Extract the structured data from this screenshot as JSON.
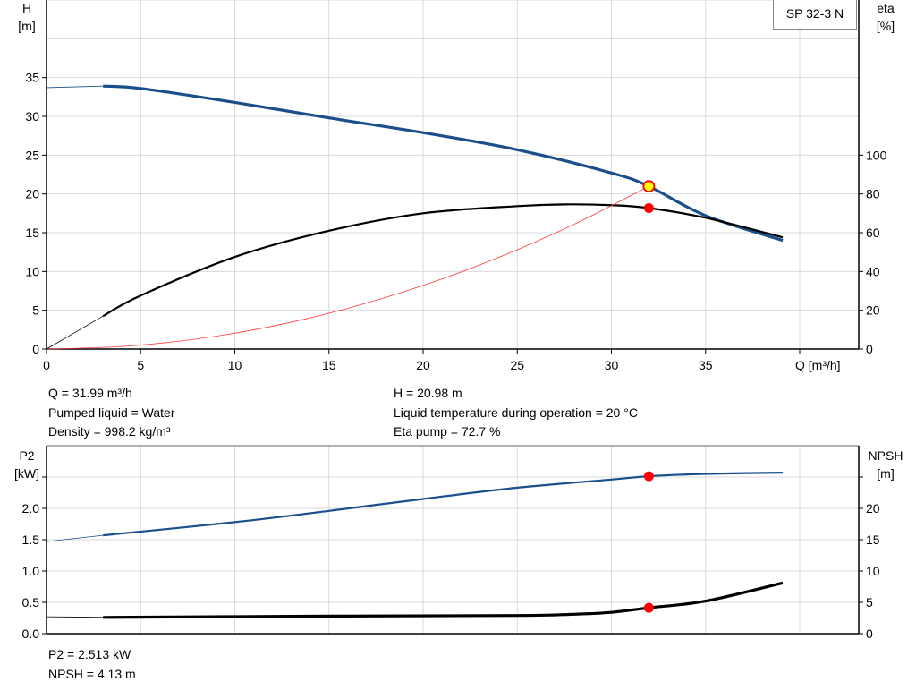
{
  "product_label": "SP 32-3 N",
  "chart_data": [
    {
      "type": "line",
      "x_label": "Q [m³/h]",
      "xlim": [
        0,
        43
      ],
      "x_ticks": [
        "0",
        "5",
        "10",
        "15",
        "20",
        "25",
        "30",
        "35"
      ],
      "y_left": {
        "label": [
          "H",
          "[m]"
        ],
        "range": [
          0,
          45
        ],
        "ticks": [
          "0",
          "5",
          "10",
          "15",
          "20",
          "25",
          "30",
          "35"
        ]
      },
      "y_right": {
        "label": [
          "eta",
          "[%]"
        ],
        "range": [
          0,
          180
        ],
        "ticks": [
          "0",
          "20",
          "40",
          "60",
          "80",
          "100"
        ]
      },
      "grid": true,
      "series": [
        {
          "id": "head",
          "axis": "left",
          "color": "#1a4f8b",
          "x": [
            0,
            3,
            5,
            10,
            15,
            20,
            25,
            30,
            31.99,
            35,
            39.1
          ],
          "y": [
            33.7,
            33.9,
            33.6,
            31.8,
            29.8,
            27.9,
            25.7,
            22.7,
            20.98,
            17.2,
            14.0
          ]
        },
        {
          "id": "eta",
          "axis": "right",
          "color": "#000000",
          "x": [
            0,
            3,
            5,
            10,
            15,
            20,
            25,
            27.5,
            30,
            32,
            35,
            39.1
          ],
          "y": [
            0,
            17,
            27.6,
            47.5,
            61,
            70,
            73.7,
            74.6,
            74.2,
            72.7,
            67.7,
            57.6
          ]
        },
        {
          "id": "system",
          "axis": "left",
          "color": "#ff3b3b",
          "x": [
            0,
            4,
            8,
            12,
            16,
            20,
            24,
            28,
            31.99
          ],
          "y": [
            0,
            0.33,
            1.31,
            2.95,
            5.25,
            8.2,
            11.8,
            16.06,
            20.98
          ]
        }
      ],
      "duty_point": {
        "Q": 31.99,
        "H": 20.98,
        "eta": 72.7
      }
    },
    {
      "type": "line",
      "xlim": [
        0,
        43
      ],
      "y_left": {
        "label": [
          "P2",
          "[kW]"
        ],
        "range": [
          0,
          3.0
        ],
        "ticks": [
          "0.0",
          "0.5",
          "1.0",
          "1.5",
          "2.0"
        ]
      },
      "y_right": {
        "label": [
          "NPSH",
          "[m]"
        ],
        "range": [
          0,
          30
        ],
        "ticks": [
          "0",
          "5",
          "10",
          "15",
          "20"
        ]
      },
      "grid": true,
      "series": [
        {
          "id": "p2",
          "axis": "left",
          "color": "#1a4f8b",
          "x": [
            0,
            3,
            10,
            15,
            20,
            25,
            30,
            31.99,
            35,
            39.1
          ],
          "y": [
            1.47,
            1.57,
            1.78,
            1.96,
            2.15,
            2.33,
            2.46,
            2.513,
            2.55,
            2.57
          ]
        },
        {
          "id": "npsh",
          "axis": "right",
          "color": "#000000",
          "x": [
            0,
            3,
            15,
            25,
            28,
            30,
            31.99,
            35,
            39.1
          ],
          "y": [
            2.7,
            2.6,
            2.8,
            2.9,
            3.1,
            3.4,
            4.13,
            5.2,
            8.1
          ]
        }
      ],
      "duty_point": {
        "Q": 31.99,
        "P2": 2.513,
        "NPSH": 4.13
      }
    }
  ],
  "info_top": {
    "left": [
      "Q = 31.99 m³/h",
      "Pumped liquid = Water",
      "Density = 998.2 kg/m³"
    ],
    "right": [
      "H = 20.98 m",
      "Liquid temperature during operation = 20 °C",
      "Eta pump = 72.7 %"
    ]
  },
  "info_bottom": [
    "P2 = 2.513 kW",
    "NPSH = 4.13 m"
  ],
  "colors": {
    "blue": "#1a4f8b",
    "grid": "#d9d9d9",
    "marker": "#ff0000",
    "marker_fill": "#ffff00"
  }
}
